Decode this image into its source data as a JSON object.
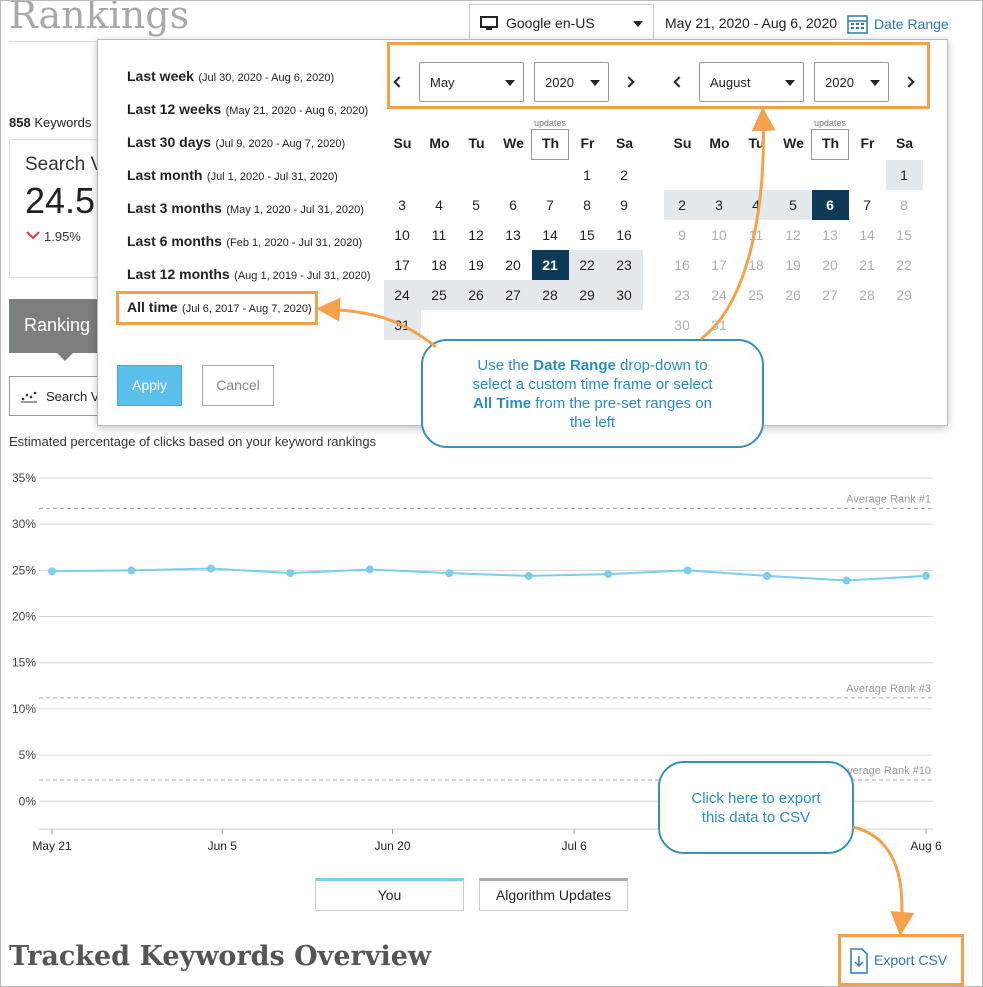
{
  "header": {
    "title": "Rankings",
    "search_engine": "Google en-US",
    "date_range": "May 21, 2020 - Aug 6, 2020",
    "date_range_button": "Date Range"
  },
  "summary": {
    "keyword_count": "858",
    "keyword_label": "Keywords",
    "card_title": "Search V",
    "card_value": "24.5",
    "card_change": "1.95%"
  },
  "tabs": {
    "active_tab": "Ranking",
    "metric_button": "Search V"
  },
  "date_picker": {
    "presets": [
      {
        "label": "Last week",
        "range": "(Jul 30, 2020 - Aug 6, 2020)"
      },
      {
        "label": "Last 12 weeks",
        "range": "(May 21, 2020 - Aug 6, 2020)"
      },
      {
        "label": "Last 30 days",
        "range": "(Jul 9, 2020 - Aug 7, 2020)"
      },
      {
        "label": "Last month",
        "range": "(Jul 1, 2020 - Jul 31, 2020)"
      },
      {
        "label": "Last 3 months",
        "range": "(May 1, 2020 - Jul 31, 2020)"
      },
      {
        "label": "Last 6 months",
        "range": "(Feb 1, 2020 - Jul 31, 2020)"
      },
      {
        "label": "Last 12 months",
        "range": "(Aug 1, 2019 - Jul 31, 2020)"
      },
      {
        "label": "All time",
        "range": "(Jul 6, 2017 - Aug 7, 2020)"
      }
    ],
    "calendars": [
      {
        "month": "May",
        "year": "2020",
        "updates_label": "updates",
        "weekdays": [
          "Su",
          "Mo",
          "Tu",
          "We",
          "Th",
          "Fr",
          "Sa"
        ],
        "weeks": [
          [
            null,
            null,
            null,
            null,
            null,
            1,
            2
          ],
          [
            3,
            4,
            5,
            6,
            7,
            8,
            9
          ],
          [
            10,
            11,
            12,
            13,
            14,
            15,
            16
          ],
          [
            17,
            18,
            19,
            20,
            21,
            22,
            23
          ],
          [
            24,
            25,
            26,
            27,
            28,
            29,
            30
          ],
          [
            31,
            null,
            null,
            null,
            null,
            null,
            null
          ]
        ],
        "selected_day": 21,
        "range": "after"
      },
      {
        "month": "August",
        "year": "2020",
        "updates_label": "updates",
        "weekdays": [
          "Su",
          "Mo",
          "Tu",
          "We",
          "Th",
          "Fr",
          "Sa"
        ],
        "weeks": [
          [
            null,
            null,
            null,
            null,
            null,
            null,
            1
          ],
          [
            2,
            3,
            4,
            5,
            6,
            7,
            8
          ],
          [
            9,
            10,
            11,
            12,
            13,
            14,
            15
          ],
          [
            16,
            17,
            18,
            19,
            20,
            21,
            22
          ],
          [
            23,
            24,
            25,
            26,
            27,
            28,
            29
          ],
          [
            30,
            31,
            null,
            null,
            null,
            null,
            null
          ]
        ],
        "selected_day": 6,
        "range": "before",
        "last_enabled_day": 7
      }
    ],
    "apply": "Apply",
    "cancel": "Cancel"
  },
  "callouts": [
    {
      "parts": [
        {
          "text": "Use the "
        },
        {
          "text": "Date Range",
          "bold": true
        },
        {
          "text": " drop-down to select a custom time frame or select "
        },
        {
          "text": "All Time",
          "bold": true
        },
        {
          "text": " from the pre-set ranges on the left"
        }
      ]
    },
    {
      "parts": [
        {
          "text": "Click here to export this data to CSV"
        }
      ]
    }
  ],
  "chart_data": {
    "type": "line",
    "subtitle": "Estimated percentage of clicks based on your keyword rankings",
    "x": [
      "May 21",
      "May 28",
      "Jun 4",
      "Jun 11",
      "Jun 18",
      "Jun 25",
      "Jul 2",
      "Jul 9",
      "Jul 16",
      "Jul 23",
      "Jul 30",
      "Aug 6"
    ],
    "xlim": [
      "May 21",
      "Aug 6"
    ],
    "xticks": [
      "May 21",
      "Jun 5",
      "Jun 20",
      "Jul 6",
      "Aug 6"
    ],
    "series": [
      {
        "name": "You",
        "color": "#7dcdec",
        "values": [
          24.9,
          25.0,
          25.2,
          24.7,
          25.1,
          24.7,
          24.4,
          24.6,
          25.0,
          24.4,
          23.9,
          24.4
        ]
      },
      {
        "name": "Algorithm Updates",
        "color": "#aaaaaa"
      }
    ],
    "ylim": [
      -3,
      35
    ],
    "yticks": [
      {
        "value": 0,
        "label": "0%"
      },
      {
        "value": 5,
        "label": "5%"
      },
      {
        "value": 10,
        "label": "10%"
      },
      {
        "value": 15,
        "label": "15%"
      },
      {
        "value": 20,
        "label": "20%"
      },
      {
        "value": 25,
        "label": "25%"
      },
      {
        "value": 30,
        "label": "30%"
      },
      {
        "value": 35,
        "label": "35%"
      }
    ],
    "grid": true,
    "reference_lines": [
      {
        "label": "Average Rank #1",
        "value": 31.7
      },
      {
        "label": "Average Rank #3",
        "value": 11.2
      },
      {
        "label": "Average Rank #10",
        "value": 2.3
      }
    ]
  },
  "footer": {
    "title": "Tracked Keywords Overview",
    "export_button": "Export CSV"
  }
}
